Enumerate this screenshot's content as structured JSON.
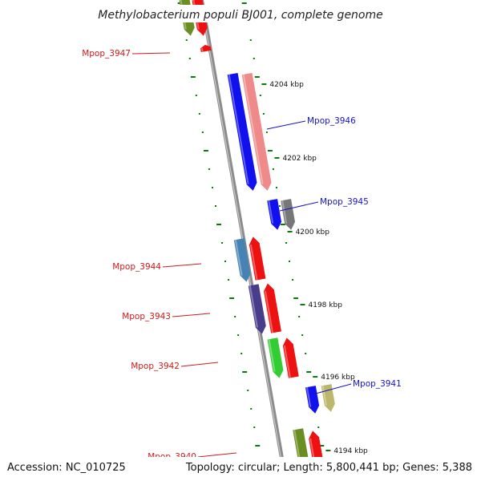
{
  "title": "Methylobacterium populi BJ001, complete genome",
  "accession": "Accession: NC_010725",
  "summary": "Topology: circular; Length: 5,800,441 bp; Genes: 5,388",
  "kbp_ticks": [
    "4204 kbp",
    "4202 kbp",
    "4200 kbp",
    "4198 kbp",
    "4196 kbp",
    "4194 kbp"
  ],
  "colors": {
    "backbone": "#8c8c8c",
    "tick": "#0a7a0a",
    "label_left": "#d11a1a",
    "label_right": "#1414c8",
    "red": "#ee1111",
    "blue": "#1111ee",
    "pink": "#ee8a8a",
    "gray": "#777777",
    "steel": "#4682b4",
    "indigo": "#483d8b",
    "green": "#33cc33",
    "olive": "#6b8e23",
    "khaki": "#bdb76b"
  },
  "genes": [
    {
      "label": "",
      "color": "olive",
      "strand": "reverse"
    },
    {
      "label": "",
      "color": "red",
      "strand": "reverse"
    },
    {
      "label": "Mpop_3947",
      "color": "red",
      "strand": "forward"
    },
    {
      "label": "",
      "color": "blue",
      "strand": "reverse"
    },
    {
      "label": "Mpop_3946",
      "color": "pink",
      "strand": "reverse"
    },
    {
      "label": "",
      "color": "blue",
      "strand": "reverse"
    },
    {
      "label": "Mpop_3945",
      "color": "gray",
      "strand": "reverse"
    },
    {
      "label": "",
      "color": "steel",
      "strand": "reverse"
    },
    {
      "label": "Mpop_3944",
      "color": "red",
      "strand": "forward"
    },
    {
      "label": "",
      "color": "indigo",
      "strand": "reverse"
    },
    {
      "label": "Mpop_3943",
      "color": "red",
      "strand": "forward"
    },
    {
      "label": "",
      "color": "green",
      "strand": "reverse"
    },
    {
      "label": "Mpop_3942",
      "color": "red",
      "strand": "forward"
    },
    {
      "label": "",
      "color": "blue",
      "strand": "reverse"
    },
    {
      "label": "Mpop_3941",
      "color": "khaki",
      "strand": "reverse"
    },
    {
      "label": "",
      "color": "olive",
      "strand": "reverse"
    },
    {
      "label": "Mpop_3940",
      "color": "red",
      "strand": "forward"
    }
  ]
}
